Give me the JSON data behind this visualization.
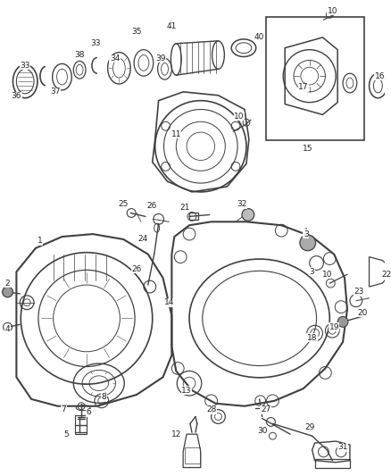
{
  "bg_color": "#ffffff",
  "line_color": "#404040",
  "label_color": "#222222",
  "label_fs": 6.5,
  "lw_main": 1.0,
  "lw_thin": 0.6,
  "figsize": [
    4.38,
    5.33
  ],
  "dpi": 100
}
